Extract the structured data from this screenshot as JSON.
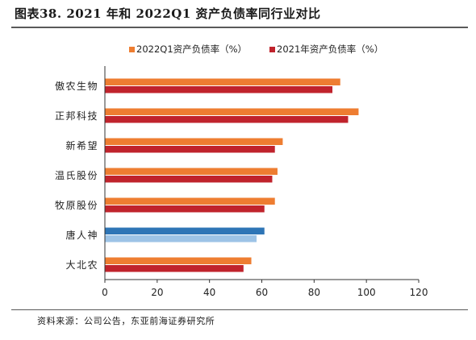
{
  "figure": {
    "title": "图表38. 2021 年和 2022Q1 资产负债率同行业对比",
    "source": "资料来源：公司公告，东亚前海证券研究所"
  },
  "chart_data": {
    "type": "bar",
    "orientation": "horizontal",
    "categories": [
      "傲农生物",
      "正邦科技",
      "新希望",
      "温氏股份",
      "牧原股份",
      "唐人神",
      "大北农"
    ],
    "series": [
      {
        "name": "2022Q1资产负债率（%）",
        "color": "#ee7d31",
        "values": [
          90,
          97,
          68,
          66,
          65,
          61,
          56
        ]
      },
      {
        "name": "2021年资产负债率（%）",
        "color": "#c0232c",
        "values": [
          87,
          93,
          65,
          64,
          61,
          58,
          53
        ]
      }
    ],
    "highlight": {
      "category": "唐人神",
      "colors": [
        "#2e75b6",
        "#9dc3e6"
      ]
    },
    "xlim": [
      0,
      120
    ],
    "xticks": [
      "0",
      "20",
      "40",
      "60",
      "80",
      "100",
      "120"
    ],
    "xlabel": "",
    "ylabel": "",
    "legend_position": "top",
    "grid": false
  }
}
